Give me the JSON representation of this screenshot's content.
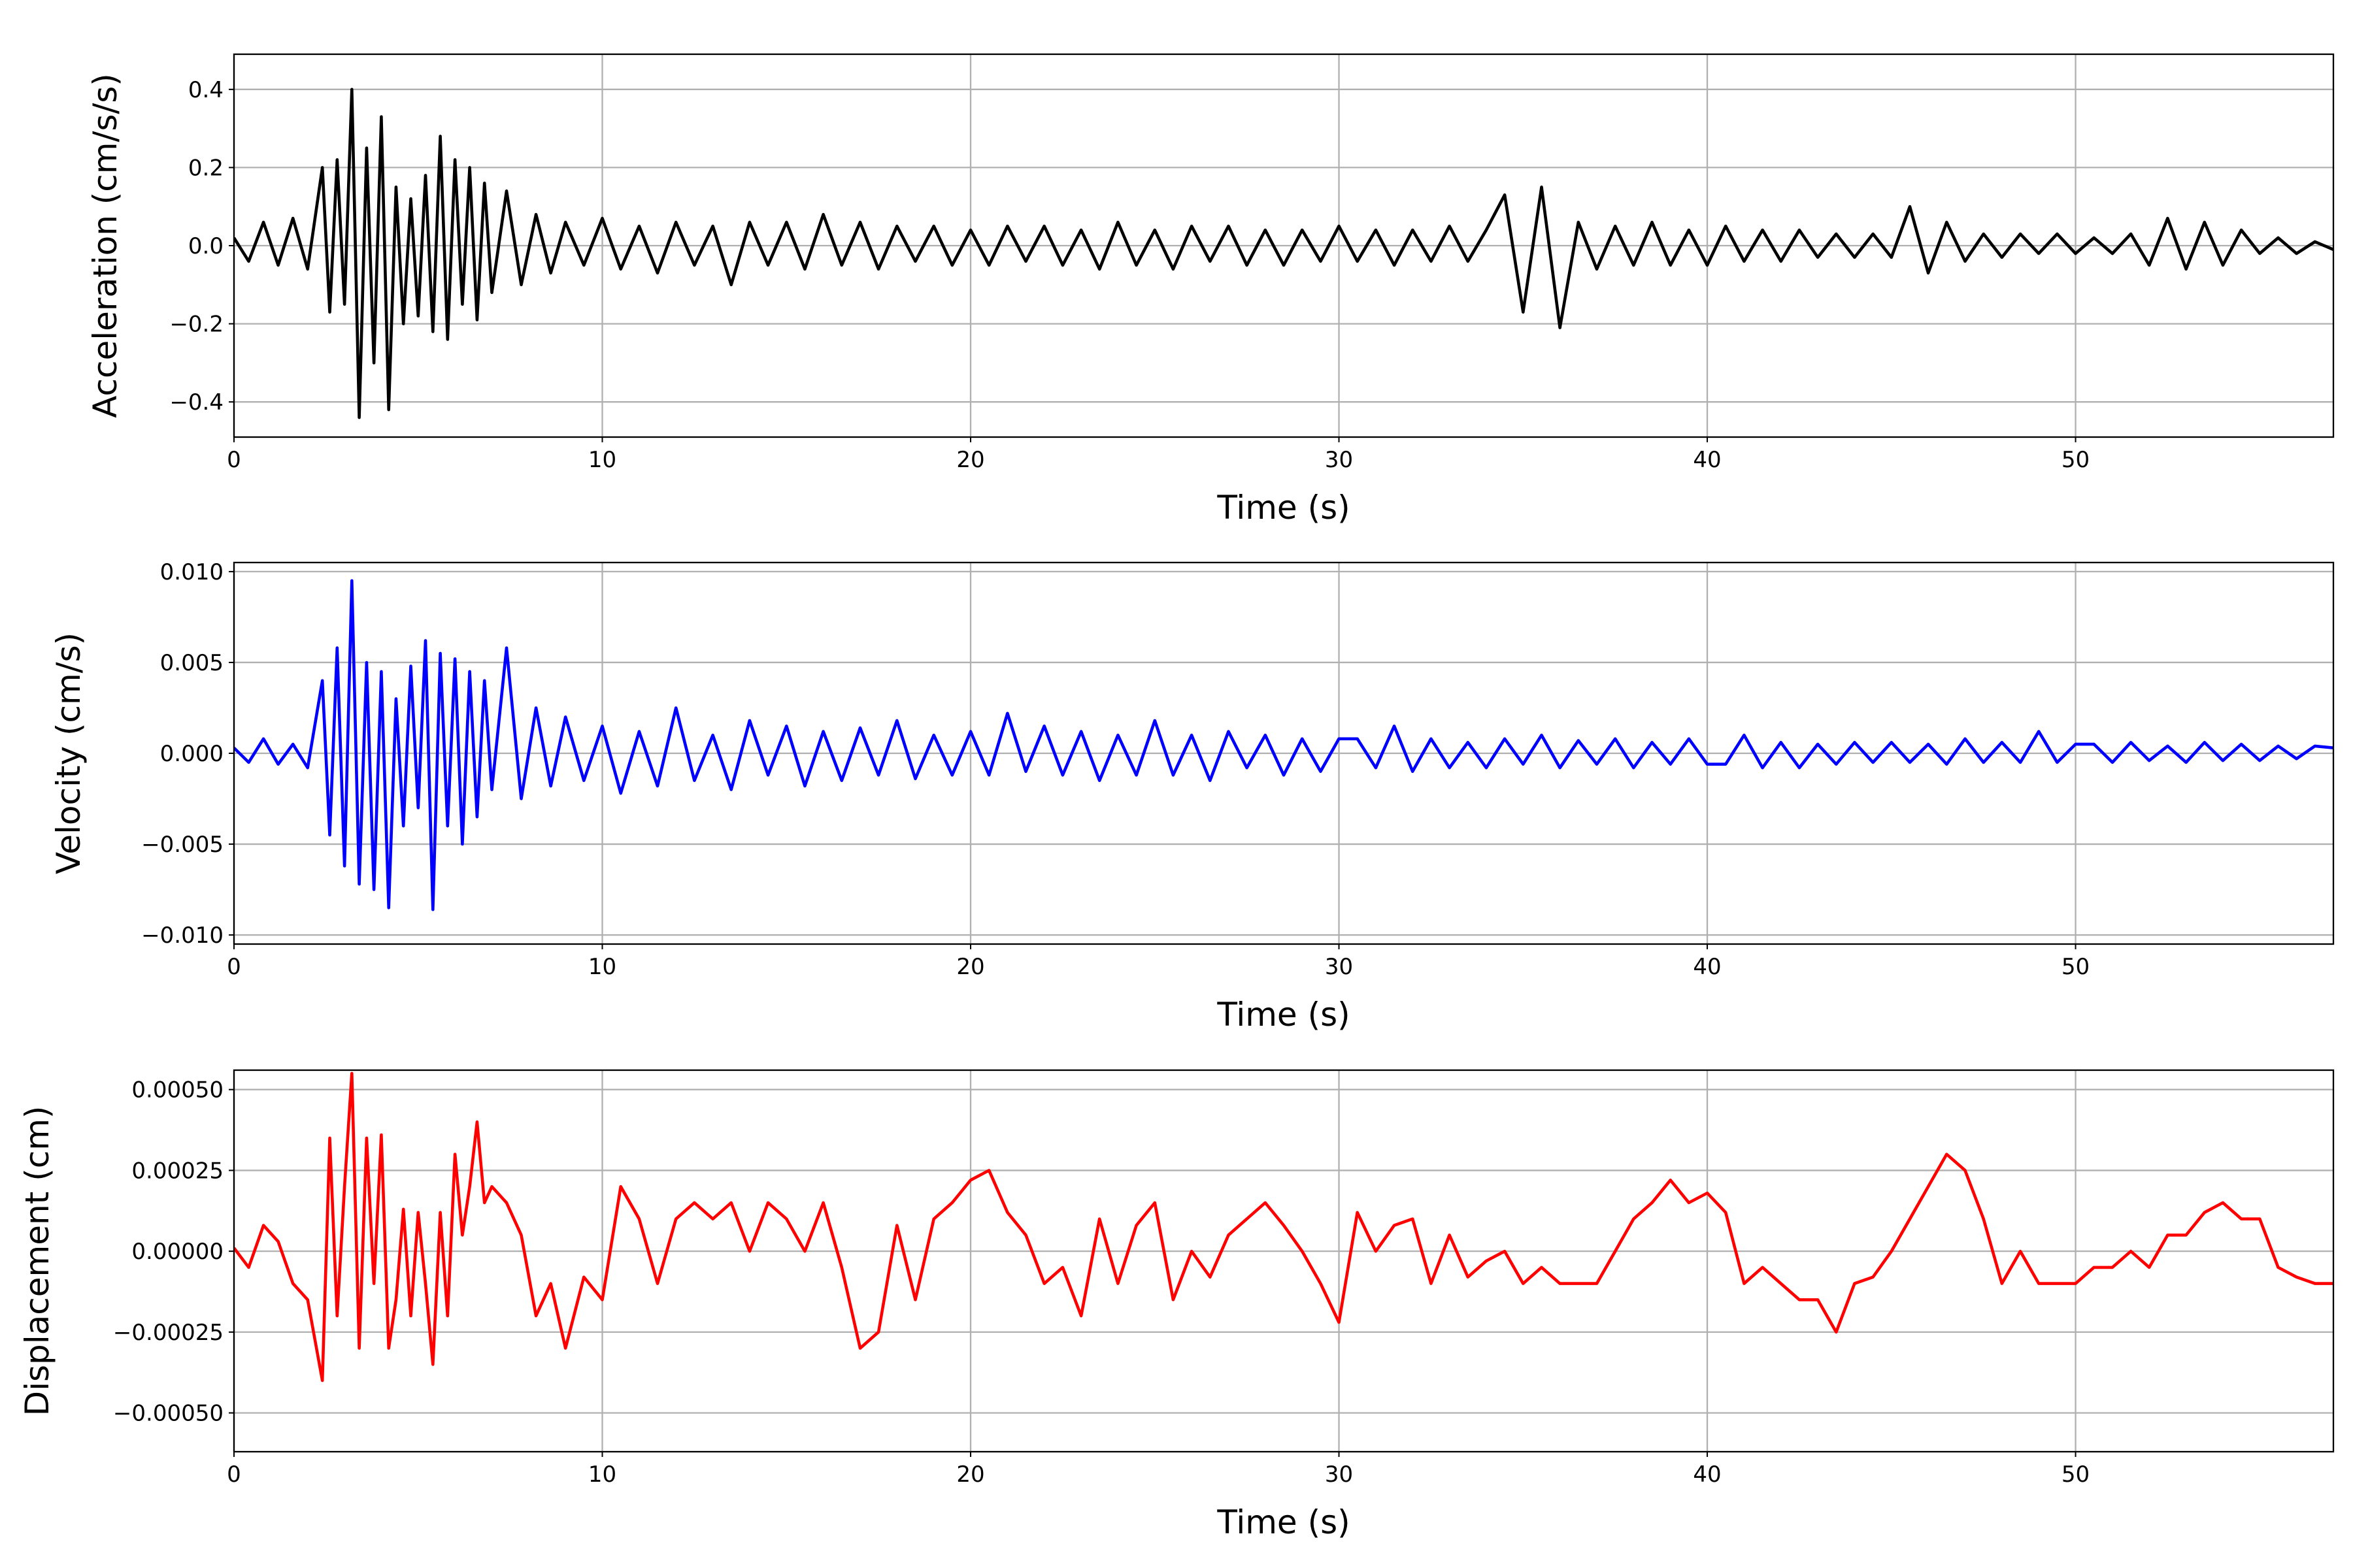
{
  "chart_data": [
    {
      "type": "line",
      "xlabel": "Time (s)",
      "ylabel": "Acceleration (cm/s/s)",
      "color": "#000000",
      "grid": true,
      "xlim": [
        0,
        57
      ],
      "xticks": [
        0,
        10,
        20,
        30,
        40,
        50
      ],
      "ylim": [
        -0.49,
        0.49
      ],
      "yticks": [
        {
          "value": -0.4,
          "label": "−0.4"
        },
        {
          "value": -0.2,
          "label": "−0.2"
        },
        {
          "value": 0,
          "label": "0.0"
        },
        {
          "value": 0.2,
          "label": "0.2"
        },
        {
          "value": 0.4,
          "label": "0.4"
        }
      ],
      "x": [
        0,
        0.4,
        0.8,
        1.2,
        1.6,
        2.0,
        2.4,
        2.6,
        2.8,
        3.0,
        3.2,
        3.4,
        3.6,
        3.8,
        4.0,
        4.2,
        4.4,
        4.6,
        4.8,
        5.0,
        5.2,
        5.4,
        5.6,
        5.8,
        6.0,
        6.2,
        6.4,
        6.6,
        6.8,
        7.0,
        7.4,
        7.8,
        8.2,
        8.6,
        9.0,
        9.5,
        10,
        10.5,
        11,
        11.5,
        12,
        12.5,
        13,
        13.5,
        14,
        14.5,
        15,
        15.5,
        16,
        16.5,
        17,
        17.5,
        18,
        18.5,
        19,
        19.5,
        20,
        20.5,
        21,
        21.5,
        22,
        22.5,
        23,
        23.5,
        24,
        24.5,
        25,
        25.5,
        26,
        26.5,
        27,
        27.5,
        28,
        28.5,
        29,
        29.5,
        30,
        30.5,
        31,
        31.5,
        32,
        32.5,
        33,
        33.5,
        34,
        34.5,
        35,
        35.5,
        36,
        36.5,
        37,
        37.5,
        38,
        38.5,
        39,
        39.5,
        40,
        40.5,
        41,
        41.5,
        42,
        42.5,
        43,
        43.5,
        44,
        44.5,
        45,
        45.5,
        46,
        46.5,
        47,
        47.5,
        48,
        48.5,
        49,
        49.5,
        50,
        50.5,
        51,
        51.5,
        52,
        52.5,
        53,
        53.5,
        54,
        54.5,
        55,
        55.5,
        56,
        56.5,
        57
      ],
      "values": [
        0.02,
        -0.04,
        0.06,
        -0.05,
        0.07,
        -0.06,
        0.2,
        -0.17,
        0.22,
        -0.15,
        0.4,
        -0.44,
        0.25,
        -0.3,
        0.33,
        -0.42,
        0.15,
        -0.2,
        0.12,
        -0.18,
        0.18,
        -0.22,
        0.28,
        -0.24,
        0.22,
        -0.15,
        0.2,
        -0.19,
        0.16,
        -0.12,
        0.14,
        -0.1,
        0.08,
        -0.07,
        0.06,
        -0.05,
        0.07,
        -0.06,
        0.05,
        -0.07,
        0.06,
        -0.05,
        0.05,
        -0.1,
        0.06,
        -0.05,
        0.06,
        -0.06,
        0.08,
        -0.05,
        0.06,
        -0.06,
        0.05,
        -0.04,
        0.05,
        -0.05,
        0.04,
        -0.05,
        0.05,
        -0.04,
        0.05,
        -0.05,
        0.04,
        -0.06,
        0.06,
        -0.05,
        0.04,
        -0.06,
        0.05,
        -0.04,
        0.05,
        -0.05,
        0.04,
        -0.05,
        0.04,
        -0.04,
        0.05,
        -0.04,
        0.04,
        -0.05,
        0.04,
        -0.04,
        0.05,
        -0.04,
        0.04,
        0.13,
        -0.17,
        0.15,
        -0.21,
        0.06,
        -0.06,
        0.05,
        -0.05,
        0.06,
        -0.05,
        0.04,
        -0.05,
        0.05,
        -0.04,
        0.04,
        -0.04,
        0.04,
        -0.03,
        0.03,
        -0.03,
        0.03,
        -0.03,
        0.1,
        -0.07,
        0.06,
        -0.04,
        0.03,
        -0.03,
        0.03,
        -0.02,
        0.03,
        -0.02,
        0.02,
        -0.02,
        0.03,
        -0.05,
        0.07,
        -0.06,
        0.06,
        -0.05,
        0.04,
        -0.02,
        0.02,
        -0.02,
        0.01,
        -0.01
      ]
    },
    {
      "type": "line",
      "xlabel": "Time (s)",
      "ylabel": "Velocity (cm/s)",
      "color": "#0000ff",
      "grid": true,
      "xlim": [
        0,
        57
      ],
      "xticks": [
        0,
        10,
        20,
        30,
        40,
        50
      ],
      "ylim": [
        -0.0105,
        0.0105
      ],
      "yticks": [
        {
          "value": -0.01,
          "label": "−0.010"
        },
        {
          "value": -0.005,
          "label": "−0.005"
        },
        {
          "value": 0,
          "label": "0.000"
        },
        {
          "value": 0.005,
          "label": "0.005"
        },
        {
          "value": 0.01,
          "label": "0.010"
        }
      ],
      "x": [
        0,
        0.4,
        0.8,
        1.2,
        1.6,
        2.0,
        2.4,
        2.6,
        2.8,
        3.0,
        3.2,
        3.4,
        3.6,
        3.8,
        4.0,
        4.2,
        4.4,
        4.6,
        4.8,
        5.0,
        5.2,
        5.4,
        5.6,
        5.8,
        6.0,
        6.2,
        6.4,
        6.6,
        6.8,
        7.0,
        7.4,
        7.8,
        8.2,
        8.6,
        9.0,
        9.5,
        10,
        10.5,
        11,
        11.5,
        12,
        12.5,
        13,
        13.5,
        14,
        14.5,
        15,
        15.5,
        16,
        16.5,
        17,
        17.5,
        18,
        18.5,
        19,
        19.5,
        20,
        20.5,
        21,
        21.5,
        22,
        22.5,
        23,
        23.5,
        24,
        24.5,
        25,
        25.5,
        26,
        26.5,
        27,
        27.5,
        28,
        28.5,
        29,
        29.5,
        30,
        30.5,
        31,
        31.5,
        32,
        32.5,
        33,
        33.5,
        34,
        34.5,
        35,
        35.5,
        36,
        36.5,
        37,
        37.5,
        38,
        38.5,
        39,
        39.5,
        40,
        40.5,
        41,
        41.5,
        42,
        42.5,
        43,
        43.5,
        44,
        44.5,
        45,
        45.5,
        46,
        46.5,
        47,
        47.5,
        48,
        48.5,
        49,
        49.5,
        50,
        50.5,
        51,
        51.5,
        52,
        52.5,
        53,
        53.5,
        54,
        54.5,
        55,
        55.5,
        56,
        56.5,
        57
      ],
      "values": [
        0.0003,
        -0.0005,
        0.0008,
        -0.0006,
        0.0005,
        -0.0008,
        0.004,
        -0.0045,
        0.0058,
        -0.0062,
        0.0095,
        -0.0072,
        0.005,
        -0.0075,
        0.0045,
        -0.0085,
        0.003,
        -0.004,
        0.0048,
        -0.003,
        0.0062,
        -0.0086,
        0.0055,
        -0.004,
        0.0052,
        -0.005,
        0.0045,
        -0.0035,
        0.004,
        -0.002,
        0.0058,
        -0.0025,
        0.0025,
        -0.0018,
        0.002,
        -0.0015,
        0.0015,
        -0.0022,
        0.0012,
        -0.0018,
        0.0025,
        -0.0015,
        0.001,
        -0.002,
        0.0018,
        -0.0012,
        0.0015,
        -0.0018,
        0.0012,
        -0.0015,
        0.0014,
        -0.0012,
        0.0018,
        -0.0014,
        0.001,
        -0.0012,
        0.0012,
        -0.0012,
        0.0022,
        -0.001,
        0.0015,
        -0.0012,
        0.0012,
        -0.0015,
        0.001,
        -0.0012,
        0.0018,
        -0.0012,
        0.001,
        -0.0015,
        0.0012,
        -0.0008,
        0.001,
        -0.0012,
        0.0008,
        -0.001,
        0.0008,
        0.0008,
        -0.0008,
        0.0015,
        -0.001,
        0.0008,
        -0.0008,
        0.0006,
        -0.0008,
        0.0008,
        -0.0006,
        0.001,
        -0.0008,
        0.0007,
        -0.0006,
        0.0008,
        -0.0008,
        0.0006,
        -0.0006,
        0.0008,
        -0.0006,
        -0.0006,
        0.001,
        -0.0008,
        0.0006,
        -0.0008,
        0.0005,
        -0.0006,
        0.0006,
        -0.0005,
        0.0006,
        -0.0005,
        0.0005,
        -0.0006,
        0.0008,
        -0.0005,
        0.0006,
        -0.0005,
        0.0012,
        -0.0005,
        0.0005,
        0.0005,
        -0.0005,
        0.0006,
        -0.0004,
        0.0004,
        -0.0005,
        0.0006,
        -0.0004,
        0.0005,
        -0.0004,
        0.0004,
        -0.0003,
        0.0004,
        0.0003
      ]
    },
    {
      "type": "line",
      "xlabel": "Time (s)",
      "ylabel": "Displacement (cm)",
      "color": "#ff0000",
      "grid": true,
      "xlim": [
        0,
        57
      ],
      "xticks": [
        0,
        10,
        20,
        30,
        40,
        50
      ],
      "ylim": [
        -0.00062,
        0.00056
      ],
      "yticks": [
        {
          "value": -0.0005,
          "label": "−0.00050"
        },
        {
          "value": -0.00025,
          "label": "−0.00025"
        },
        {
          "value": 0,
          "label": "0.00000"
        },
        {
          "value": 0.00025,
          "label": "0.00025"
        },
        {
          "value": 0.0005,
          "label": "0.00050"
        }
      ],
      "x": [
        0,
        0.4,
        0.8,
        1.2,
        1.6,
        2.0,
        2.4,
        2.6,
        2.8,
        3.0,
        3.2,
        3.4,
        3.6,
        3.8,
        4.0,
        4.2,
        4.4,
        4.6,
        4.8,
        5.0,
        5.2,
        5.4,
        5.6,
        5.8,
        6.0,
        6.2,
        6.4,
        6.6,
        6.8,
        7.0,
        7.4,
        7.8,
        8.2,
        8.6,
        9.0,
        9.5,
        10,
        10.5,
        11,
        11.5,
        12,
        12.5,
        13,
        13.5,
        14,
        14.5,
        15,
        15.5,
        16,
        16.5,
        17,
        17.5,
        18,
        18.5,
        19,
        19.5,
        20,
        20.5,
        21,
        21.5,
        22,
        22.5,
        23,
        23.5,
        24,
        24.5,
        25,
        25.5,
        26,
        26.5,
        27,
        27.5,
        28,
        28.5,
        29,
        29.5,
        30,
        30.5,
        31,
        31.5,
        32,
        32.5,
        33,
        33.5,
        34,
        34.5,
        35,
        35.5,
        36,
        36.5,
        37,
        37.5,
        38,
        38.5,
        39,
        39.5,
        40,
        40.5,
        41,
        41.5,
        42,
        42.5,
        43,
        43.5,
        44,
        44.5,
        45,
        45.5,
        46,
        46.5,
        47,
        47.5,
        48,
        48.5,
        49,
        49.5,
        50,
        50.5,
        51,
        51.5,
        52,
        52.5,
        53,
        53.5,
        54,
        54.5,
        55,
        55.5,
        56,
        56.5,
        57
      ],
      "values": [
        1e-05,
        -5e-05,
        8e-05,
        3e-05,
        -0.0001,
        -0.00015,
        -0.0004,
        0.00035,
        -0.0002,
        0.0002,
        0.00055,
        -0.0003,
        0.00035,
        -0.0001,
        0.00036,
        -0.0003,
        -0.00015,
        0.00013,
        -0.0002,
        0.00012,
        -0.0001,
        -0.00035,
        0.00012,
        -0.0002,
        0.0003,
        5e-05,
        0.0002,
        0.0004,
        0.00015,
        0.0002,
        0.00015,
        5e-05,
        -0.0002,
        -0.0001,
        -0.0003,
        -8e-05,
        -0.00015,
        0.0002,
        0.0001,
        -0.0001,
        0.0001,
        0.00015,
        0.0001,
        0.00015,
        0,
        0.00015,
        0.0001,
        0,
        0.00015,
        -5e-05,
        -0.0003,
        -0.00025,
        8e-05,
        -0.00015,
        0.0001,
        0.00015,
        0.00022,
        0.00025,
        0.00012,
        5e-05,
        -0.0001,
        -5e-05,
        -0.0002,
        0.0001,
        -0.0001,
        8e-05,
        0.00015,
        -0.00015,
        0,
        -8e-05,
        5e-05,
        0.0001,
        0.00015,
        8e-05,
        0,
        -0.0001,
        -0.00022,
        0.00012,
        0,
        8e-05,
        0.0001,
        -0.0001,
        5e-05,
        -8e-05,
        -3e-05,
        0,
        -0.0001,
        -5e-05,
        -0.0001,
        -0.0001,
        -0.0001,
        0,
        0.0001,
        0.00015,
        0.00022,
        0.00015,
        0.00018,
        0.00012,
        -0.0001,
        -5e-05,
        -0.0001,
        -0.00015,
        -0.00015,
        -0.00025,
        -0.0001,
        -8e-05,
        0,
        0.0001,
        0.0002,
        0.0003,
        0.00025,
        0.0001,
        -0.0001,
        0,
        -0.0001,
        -0.0001,
        -0.0001,
        -5e-05,
        -5e-05,
        0,
        -5e-05,
        5e-05,
        5e-05,
        0.00012,
        0.00015,
        0.0001,
        0.0001,
        -5e-05,
        -8e-05,
        -0.0001,
        -0.0001
      ]
    }
  ]
}
